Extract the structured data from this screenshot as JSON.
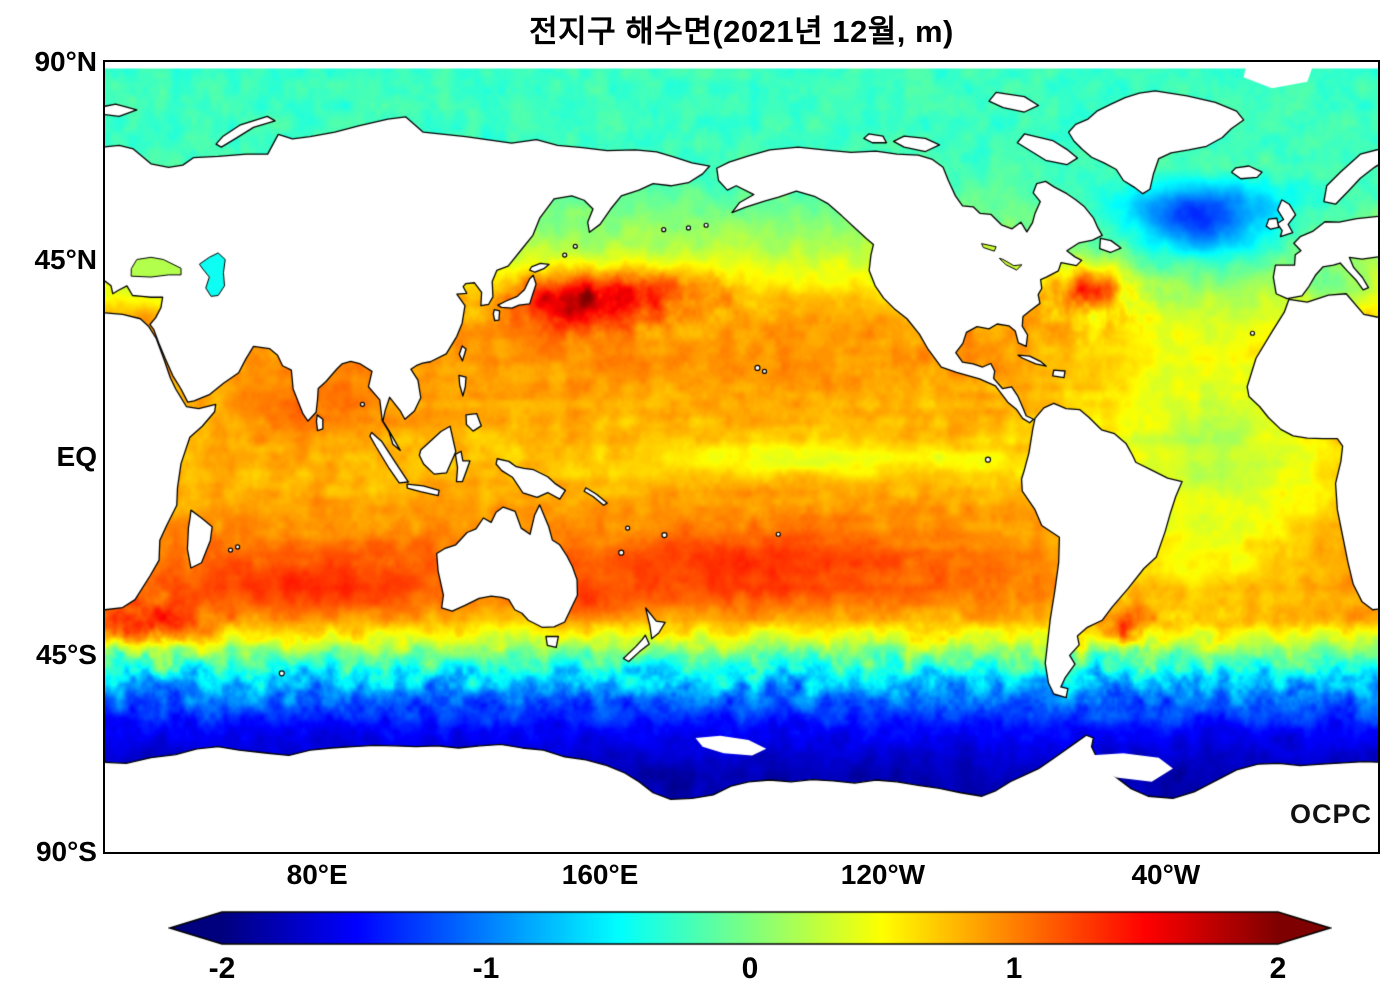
{
  "title": "전지구 해수면(2021년 12월, m)",
  "watermark": "OCPC",
  "axes": {
    "y_ticks": [
      {
        "label": "90°N",
        "lat": 90
      },
      {
        "label": "45°N",
        "lat": 45
      },
      {
        "label": "EQ",
        "lat": 0
      },
      {
        "label": "45°S",
        "lat": -45
      },
      {
        "label": "90°S",
        "lat": -90
      }
    ],
    "x_ticks": [
      {
        "label": "80°E",
        "lon_east": 80
      },
      {
        "label": "160°E",
        "lon_east": 160
      },
      {
        "label": "120°W",
        "lon_east": 240
      },
      {
        "label": "40°W",
        "lon_east": 320
      }
    ]
  },
  "colorbar": {
    "tick_labels": [
      "-2",
      "-1",
      "0",
      "1",
      "2"
    ],
    "tick_values": [
      -2,
      -1,
      0,
      1,
      2
    ],
    "min": -2,
    "max": 2,
    "units": "m",
    "colormap": "jet",
    "extend": "both"
  },
  "chart_data": {
    "type": "heatmap",
    "title": "전지구 해수면(2021년 12월, m)",
    "variable": "global sea surface height",
    "units": "m",
    "date": "2021년 12월",
    "projection": "equirectangular, Pacific-centered",
    "lon_range_deg_east": [
      20,
      380
    ],
    "lat_range": [
      -90,
      90
    ],
    "value_range": [
      -2,
      2
    ],
    "legend_position": "bottom",
    "grid": false,
    "land_color": "white with black coastlines",
    "zonal_mean_profile": [
      {
        "lat": -70,
        "value": -1.8
      },
      {
        "lat": -60,
        "value": -1.45
      },
      {
        "lat": -52,
        "value": -0.8
      },
      {
        "lat": -46,
        "value": -0.2
      },
      {
        "lat": -42,
        "value": 0.35
      },
      {
        "lat": -35,
        "value": 0.85
      },
      {
        "lat": -25,
        "value": 1.0
      },
      {
        "lat": -10,
        "value": 0.85
      },
      {
        "lat": 0,
        "value": 0.75
      },
      {
        "lat": 15,
        "value": 0.85
      },
      {
        "lat": 30,
        "value": 0.85
      },
      {
        "lat": 40,
        "value": 0.55
      },
      {
        "lat": 48,
        "value": 0.2
      },
      {
        "lat": 55,
        "value": 0.0
      },
      {
        "lat": 70,
        "value": -0.25
      }
    ],
    "features": [
      {
        "name": "Kuroshio extension high",
        "lon_east": 150,
        "lat": 36,
        "value": 1.8
      },
      {
        "name": "Gulf Stream high",
        "lon_east": 299,
        "lat": 38,
        "value": 1.5
      },
      {
        "name": "Subpolar North Atlantic low",
        "lon_east": 329,
        "lat": 54,
        "value": -0.7
      },
      {
        "name": "Equatorial central Pacific trough",
        "lon_east": 222,
        "lat": 0,
        "value": 0.5
      },
      {
        "name": "Western Pacific warm pool",
        "lon_east": 140,
        "lat": -8,
        "value": 1.2
      },
      {
        "name": "South Indian subtropical high",
        "lon_east": 78,
        "lat": -30,
        "value": 1.2
      },
      {
        "name": "Agulhas retroflection high",
        "lon_east": 33,
        "lat": -38,
        "value": 1.3
      },
      {
        "name": "Brazil–Malvinas confluence high",
        "lon_east": 307,
        "lat": -40,
        "value": 1.2
      },
      {
        "name": "Equatorial Atlantic",
        "lon_east": 340,
        "lat": 0,
        "value": 0.35
      },
      {
        "name": "Southern Ocean low",
        "lon_east": 200,
        "lat": -58,
        "value": -1.3
      },
      {
        "name": "Antarctic margin low",
        "lon_east": 120,
        "lat": -66,
        "value": -1.8
      },
      {
        "name": "Arctic Ocean",
        "lon_east": 200,
        "lat": 78,
        "value": -0.25
      },
      {
        "name": "Bering Sea",
        "lon_east": 182,
        "lat": 58,
        "value": -0.1
      }
    ]
  }
}
